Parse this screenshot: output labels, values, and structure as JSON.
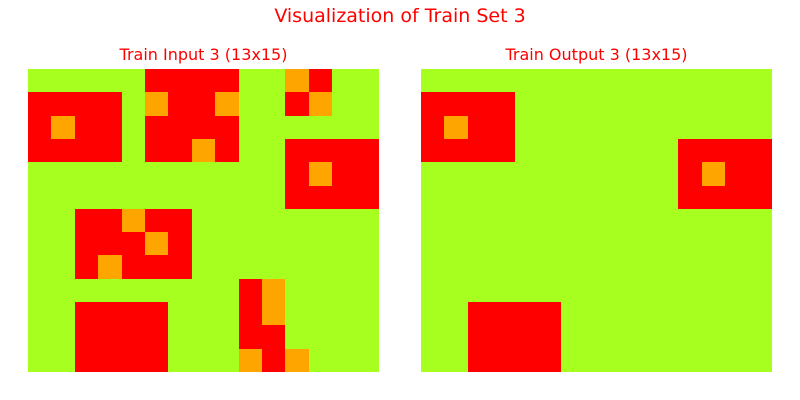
{
  "title": "Visualization of Train Set 3",
  "palette": {
    "0": "#a6ff1f",
    "1": "#ff0000",
    "2": "#ffa500"
  },
  "panels": {
    "input": {
      "title": "Train Input 3 (13x15)",
      "grid": [
        [
          0,
          0,
          0,
          0,
          0,
          1,
          1,
          1,
          1,
          0,
          0,
          2,
          1,
          0,
          0
        ],
        [
          1,
          1,
          1,
          1,
          0,
          2,
          1,
          1,
          2,
          0,
          0,
          1,
          2,
          0,
          0
        ],
        [
          1,
          2,
          1,
          1,
          0,
          1,
          1,
          1,
          1,
          0,
          0,
          0,
          0,
          0,
          0
        ],
        [
          1,
          1,
          1,
          1,
          0,
          1,
          1,
          2,
          1,
          0,
          0,
          1,
          1,
          1,
          1
        ],
        [
          0,
          0,
          0,
          0,
          0,
          0,
          0,
          0,
          0,
          0,
          0,
          1,
          2,
          1,
          1
        ],
        [
          0,
          0,
          0,
          0,
          0,
          0,
          0,
          0,
          0,
          0,
          0,
          1,
          1,
          1,
          1
        ],
        [
          0,
          0,
          1,
          1,
          2,
          1,
          1,
          0,
          0,
          0,
          0,
          0,
          0,
          0,
          0
        ],
        [
          0,
          0,
          1,
          1,
          1,
          2,
          1,
          0,
          0,
          0,
          0,
          0,
          0,
          0,
          0
        ],
        [
          0,
          0,
          1,
          2,
          1,
          1,
          1,
          0,
          0,
          0,
          0,
          0,
          0,
          0,
          0
        ],
        [
          0,
          0,
          0,
          0,
          0,
          0,
          0,
          0,
          0,
          1,
          2,
          0,
          0,
          0,
          0
        ],
        [
          0,
          0,
          1,
          1,
          1,
          1,
          0,
          0,
          0,
          1,
          2,
          0,
          0,
          0,
          0
        ],
        [
          0,
          0,
          1,
          1,
          1,
          1,
          0,
          0,
          0,
          1,
          1,
          0,
          0,
          0,
          0
        ],
        [
          0,
          0,
          1,
          1,
          1,
          1,
          0,
          0,
          0,
          2,
          1,
          2,
          0,
          0,
          0
        ]
      ]
    },
    "output": {
      "title": "Train Output 3 (13x15)",
      "grid": [
        [
          0,
          0,
          0,
          0,
          0,
          0,
          0,
          0,
          0,
          0,
          0,
          0,
          0,
          0,
          0
        ],
        [
          1,
          1,
          1,
          1,
          0,
          0,
          0,
          0,
          0,
          0,
          0,
          0,
          0,
          0,
          0
        ],
        [
          1,
          2,
          1,
          1,
          0,
          0,
          0,
          0,
          0,
          0,
          0,
          0,
          0,
          0,
          0
        ],
        [
          1,
          1,
          1,
          1,
          0,
          0,
          0,
          0,
          0,
          0,
          0,
          1,
          1,
          1,
          1
        ],
        [
          0,
          0,
          0,
          0,
          0,
          0,
          0,
          0,
          0,
          0,
          0,
          1,
          2,
          1,
          1
        ],
        [
          0,
          0,
          0,
          0,
          0,
          0,
          0,
          0,
          0,
          0,
          0,
          1,
          1,
          1,
          1
        ],
        [
          0,
          0,
          0,
          0,
          0,
          0,
          0,
          0,
          0,
          0,
          0,
          0,
          0,
          0,
          0
        ],
        [
          0,
          0,
          0,
          0,
          0,
          0,
          0,
          0,
          0,
          0,
          0,
          0,
          0,
          0,
          0
        ],
        [
          0,
          0,
          0,
          0,
          0,
          0,
          0,
          0,
          0,
          0,
          0,
          0,
          0,
          0,
          0
        ],
        [
          0,
          0,
          0,
          0,
          0,
          0,
          0,
          0,
          0,
          0,
          0,
          0,
          0,
          0,
          0
        ],
        [
          0,
          0,
          1,
          1,
          1,
          1,
          0,
          0,
          0,
          0,
          0,
          0,
          0,
          0,
          0
        ],
        [
          0,
          0,
          1,
          1,
          1,
          1,
          0,
          0,
          0,
          0,
          0,
          0,
          0,
          0,
          0
        ],
        [
          0,
          0,
          1,
          1,
          1,
          1,
          0,
          0,
          0,
          0,
          0,
          0,
          0,
          0,
          0
        ]
      ]
    }
  }
}
